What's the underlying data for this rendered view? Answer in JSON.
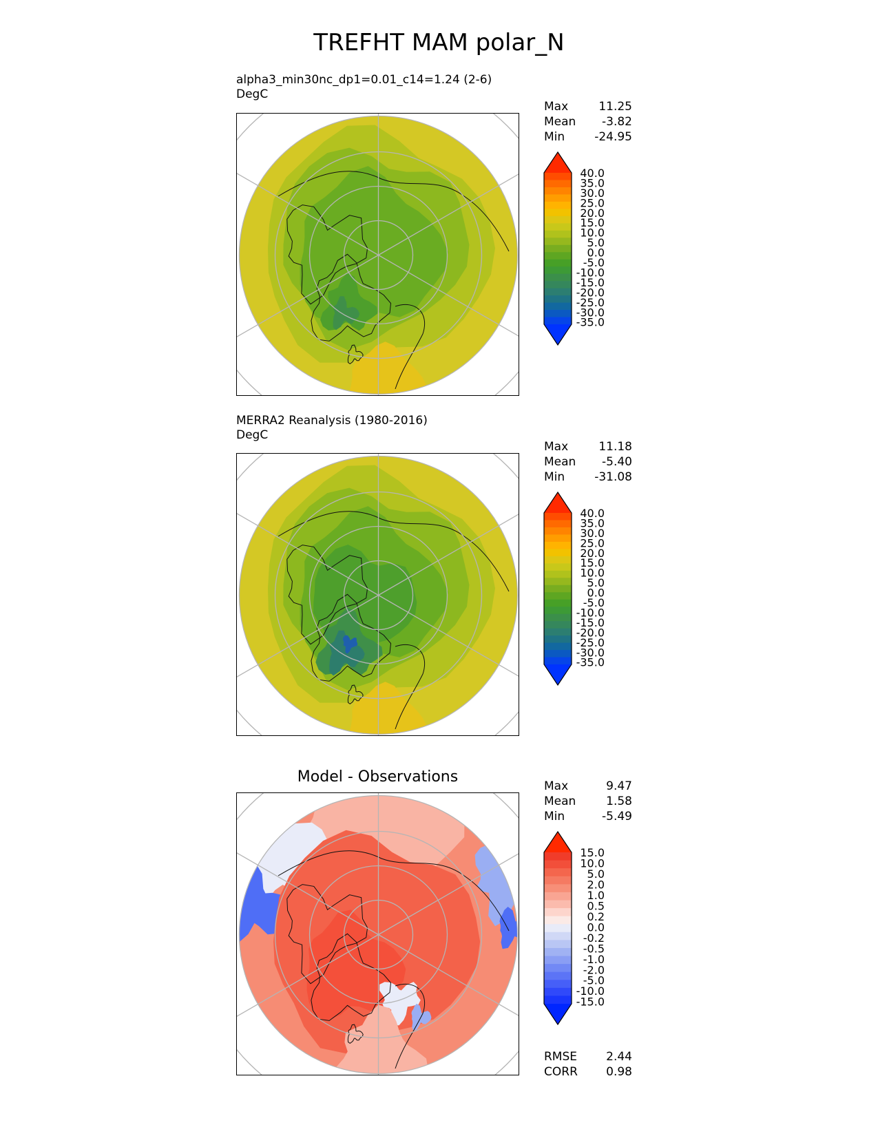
{
  "figure": {
    "title": "TREFHT MAM polar_N"
  },
  "panels": [
    {
      "id": "model",
      "title": "alpha3_min30nc_dp1=0.01_c14=1.24 (2-6)",
      "units": "DegC",
      "stats": {
        "max_label": "Max",
        "max": "11.25",
        "mean_label": "Mean",
        "mean": "-3.82",
        "min_label": "Min",
        "min": "-24.95"
      }
    },
    {
      "id": "obs",
      "title": "MERRA2 Reanalysis (1980-2016)",
      "units": "DegC",
      "stats": {
        "max_label": "Max",
        "max": "11.18",
        "mean_label": "Mean",
        "mean": "-5.40",
        "min_label": "Min",
        "min": "-31.08"
      }
    },
    {
      "id": "diff",
      "title": "Model - Observations",
      "stats": {
        "max_label": "Max",
        "max": "9.47",
        "mean_label": "Mean",
        "mean": "1.58",
        "min_label": "Min",
        "min": "-5.49"
      },
      "extra": {
        "rmse_label": "RMSE",
        "rmse": "2.44",
        "corr_label": "CORR",
        "corr": "0.98"
      }
    }
  ],
  "colorbars": {
    "temperature": {
      "labels": [
        "40.0",
        "35.0",
        "30.0",
        "25.0",
        "20.0",
        "15.0",
        "10.0",
        "5.0",
        "0.0",
        "-5.0",
        "-10.0",
        "-15.0",
        "-20.0",
        "-25.0",
        "-30.0",
        "-35.0"
      ],
      "colors": [
        "#ff2a00",
        "#ff4d00",
        "#ff6a00",
        "#ff8400",
        "#ff9d00",
        "#ffb300",
        "#f2c200",
        "#ddc714",
        "#c8c81a",
        "#b0c21c",
        "#96b81e",
        "#79ad20",
        "#5ea622",
        "#47a027",
        "#3d9a36",
        "#3b8f4a",
        "#35875c",
        "#2c7e71",
        "#1f7384",
        "#1268a0",
        "#0b59c2",
        "#0645e8",
        "#0033ff"
      ]
    },
    "difference": {
      "labels": [
        "15.0",
        "10.0",
        "5.0",
        "2.0",
        "1.0",
        "0.5",
        "0.2",
        "0.0",
        "-0.2",
        "-0.5",
        "-1.0",
        "-2.0",
        "-5.0",
        "-10.0",
        "-15.0"
      ],
      "colors": [
        "#ff2a00",
        "#f03c2a",
        "#f24f3a",
        "#f4664d",
        "#f57a62",
        "#f78f78",
        "#f9a593",
        "#fbbbad",
        "#fdd5cc",
        "#fbeae6",
        "#e8ebf8",
        "#d0d8f6",
        "#b9c6f4",
        "#a0b2f3",
        "#8a9ef4",
        "#7289f5",
        "#5c74f6",
        "#465ff8",
        "#3049fa",
        "#1a36fc",
        "#0026ff"
      ]
    }
  },
  "map_style": {
    "projection": "north polar stereographic",
    "grid": "on",
    "model_palette": [
      "#d4c825",
      "#b3c21f",
      "#8db81f",
      "#6aac22",
      "#4e9f2c",
      "#3f8f49",
      "#2d7d6c"
    ],
    "diff_palette": [
      "#f3624a",
      "#f68c74",
      "#f9b4a4",
      "#e9ecf9",
      "#9aaef3",
      "#4f6ef6"
    ]
  }
}
